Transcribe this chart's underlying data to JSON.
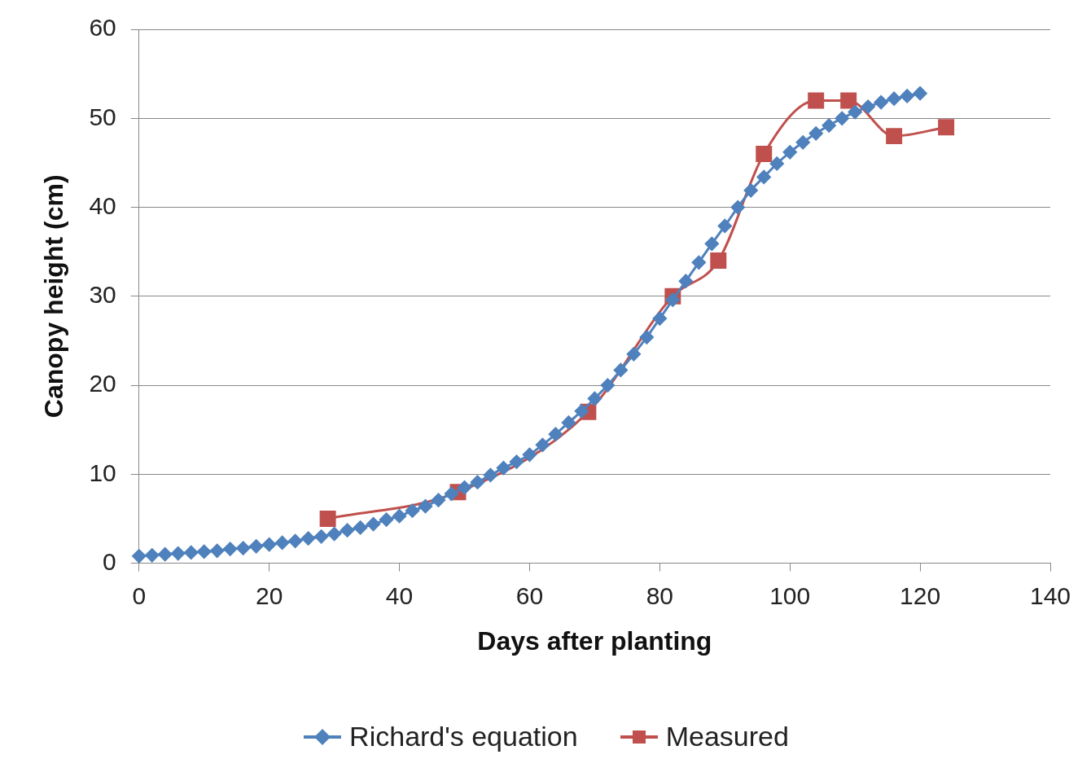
{
  "chart_data": {
    "type": "line",
    "xlabel": "Days after planting",
    "ylabel": "Canopy height (cm)",
    "xlim": [
      0,
      140
    ],
    "xticks": [
      0,
      20,
      40,
      60,
      80,
      100,
      120,
      140
    ],
    "ylim": [
      0,
      60
    ],
    "yticks": [
      0,
      10,
      20,
      30,
      40,
      50,
      60
    ],
    "grid": "y",
    "legend": "bottom",
    "line_style": "solid",
    "series": [
      {
        "name": "Richard's equation",
        "color": "#4f81bd",
        "marker": "diamond",
        "x": [
          0,
          2,
          4,
          6,
          8,
          10,
          12,
          14,
          16,
          18,
          20,
          22,
          24,
          26,
          28,
          30,
          32,
          34,
          36,
          38,
          40,
          42,
          44,
          46,
          48,
          50,
          52,
          54,
          56,
          58,
          60,
          62,
          64,
          66,
          68,
          70,
          72,
          74,
          76,
          78,
          80,
          82,
          84,
          86,
          88,
          90,
          92,
          94,
          96,
          98,
          100,
          102,
          104,
          106,
          108,
          110,
          112,
          114,
          116,
          118,
          120
        ],
        "values": [
          0.8,
          0.9,
          1.0,
          1.1,
          1.2,
          1.3,
          1.4,
          1.6,
          1.7,
          1.9,
          2.1,
          2.3,
          2.5,
          2.8,
          3.0,
          3.3,
          3.7,
          4.0,
          4.4,
          4.9,
          5.3,
          5.9,
          6.4,
          7.1,
          7.8,
          8.5,
          9.1,
          9.9,
          10.7,
          11.4,
          12.2,
          13.3,
          14.5,
          15.8,
          17.1,
          18.5,
          20.0,
          21.7,
          23.5,
          25.4,
          27.5,
          29.6,
          31.7,
          33.8,
          35.9,
          37.9,
          40.0,
          41.9,
          43.4,
          44.9,
          46.2,
          47.3,
          48.3,
          49.2,
          50.0,
          50.7,
          51.3,
          51.8,
          52.2,
          52.5,
          52.8
        ]
      },
      {
        "name": "Measured",
        "color": "#c0504d",
        "marker": "square",
        "x": [
          29,
          49,
          69,
          82,
          89,
          96,
          104,
          109,
          116,
          124
        ],
        "values": [
          5,
          8,
          17,
          30,
          34,
          46,
          52,
          52,
          48,
          49
        ]
      }
    ]
  }
}
